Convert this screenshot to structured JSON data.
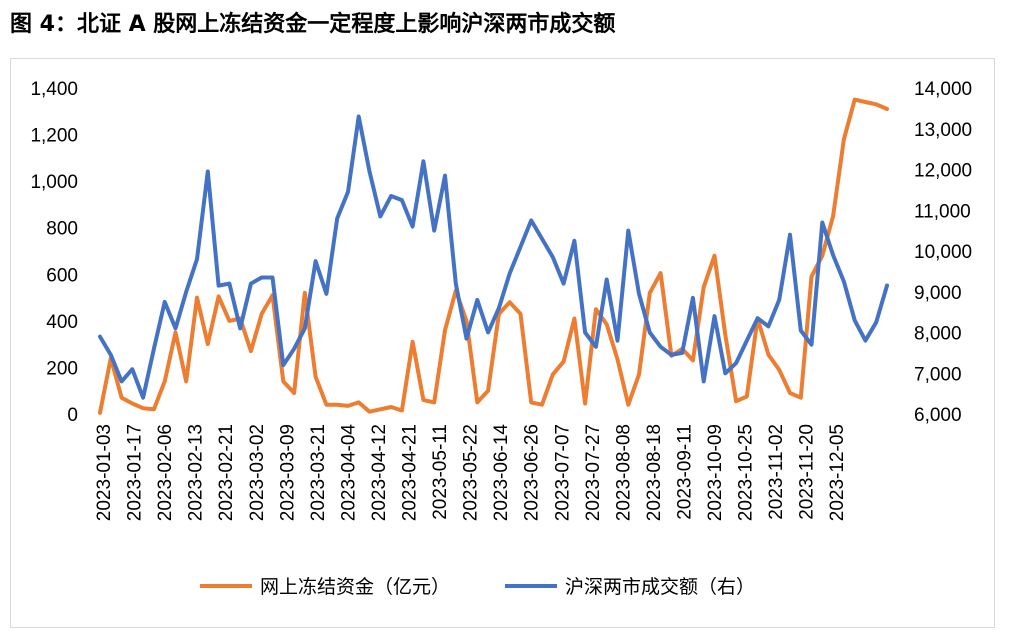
{
  "figure_title": "图 4：北证 A 股网上冻结资金一定程度上影响沪深两市成交额",
  "colors": {
    "frozen": "#ED7D31",
    "turnover": "#4472C4"
  },
  "chart_data": {
    "type": "line",
    "title": "图 4：北证 A 股网上冻结资金一定程度上影响沪深两市成交额",
    "x_tick_labels": [
      "2023-01-03",
      "2023-01-17",
      "2023-02-06",
      "2023-02-13",
      "2023-02-21",
      "2023-03-02",
      "2023-03-09",
      "2023-03-21",
      "2023-04-04",
      "2023-04-12",
      "2023-04-21",
      "2023-05-11",
      "2023-05-22",
      "2023-06-14",
      "2023-06-26",
      "2023-07-07",
      "2023-07-27",
      "2023-08-08",
      "2023-08-18",
      "2023-09-11",
      "2023-10-09",
      "2023-10-25",
      "2023-11-02",
      "2023-11-20",
      "2023-12-05"
    ],
    "y_left": {
      "ylim": [
        0,
        1400
      ],
      "ticks": [
        "0",
        "200",
        "400",
        "600",
        "800",
        "1,000",
        "1,200",
        "1,400"
      ]
    },
    "y_right": {
      "ylim": [
        6000,
        14000
      ],
      "ticks": [
        "6,000",
        "7,000",
        "8,000",
        "9,000",
        "10,000",
        "11,000",
        "12,000",
        "13,000",
        "14,000"
      ]
    },
    "grid": false,
    "legend_position": "bottom",
    "series": [
      {
        "name": "网上冻结资金（亿元）",
        "axis": "left",
        "values": [
          5,
          240,
          70,
          45,
          25,
          20,
          140,
          350,
          140,
          500,
          300,
          505,
          400,
          410,
          270,
          430,
          510,
          140,
          90,
          520,
          160,
          40,
          40,
          35,
          50,
          10,
          20,
          30,
          15,
          310,
          60,
          50,
          360,
          530,
          400,
          50,
          100,
          430,
          480,
          430,
          50,
          40,
          170,
          225,
          410,
          45,
          450,
          385,
          235,
          40,
          170,
          520,
          605,
          250,
          280,
          230,
          545,
          680,
          340,
          55,
          75,
          410,
          255,
          190,
          90,
          70,
          590,
          680,
          850,
          1180,
          1350,
          1340,
          1330,
          1310
        ]
      },
      {
        "name": "沪深两市成交额（右）",
        "axis": "right",
        "values": [
          7900,
          7450,
          6800,
          7100,
          6400,
          7600,
          8750,
          8100,
          9000,
          9800,
          11950,
          9150,
          9200,
          8100,
          9200,
          9350,
          9350,
          7200,
          7600,
          8100,
          9750,
          8950,
          10800,
          11450,
          13300,
          11950,
          10850,
          11350,
          11250,
          10600,
          12200,
          10500,
          11850,
          9200,
          7850,
          8800,
          8000,
          8600,
          9450,
          10100,
          10750,
          10300,
          9850,
          9200,
          10250,
          8000,
          7650,
          9300,
          7800,
          10500,
          8950,
          8000,
          7650,
          7450,
          7500,
          8850,
          6800,
          8400,
          7000,
          7250,
          7800,
          8350,
          8150,
          8800,
          10400,
          8050,
          7700,
          10700,
          9900,
          9250,
          8300,
          7800,
          8250,
          9150
        ]
      }
    ]
  }
}
